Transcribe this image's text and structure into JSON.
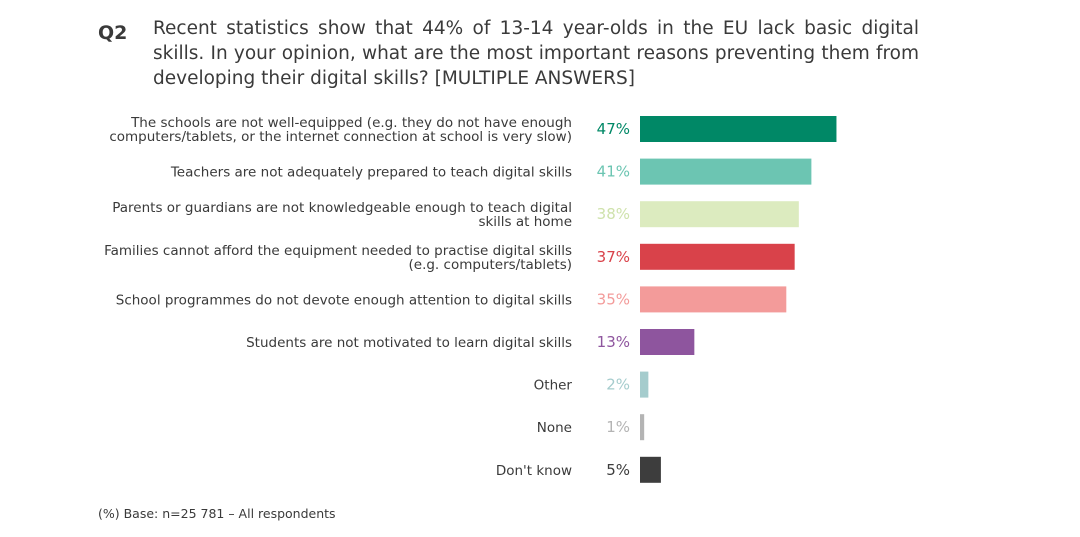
{
  "question": {
    "number": "Q2",
    "text": "Recent statistics show that 44% of 13-14 year-olds in the EU lack basic digital skills. In your opinion, what are the most important reasons preventing them from developing their digital skills? [MULTIPLE ANSWERS]"
  },
  "chart_data": {
    "type": "bar",
    "orientation": "horizontal",
    "categories": [
      [
        "The schools are not well-equipped (e.g. they do not have enough",
        "computers/tablets, or the internet connection at school is very slow)"
      ],
      [
        "Teachers are not adequately prepared to teach digital skills"
      ],
      [
        "Parents or guardians are not knowledgeable enough to teach digital",
        "skills at home"
      ],
      [
        "Families cannot afford the equipment needed to practise digital skills",
        "(e.g. computers/tablets)"
      ],
      [
        "School programmes do not devote enough attention to digital skills"
      ],
      [
        "Students are not motivated to learn digital skills"
      ],
      [
        "Other"
      ],
      [
        "None"
      ],
      [
        "Don't know"
      ]
    ],
    "values": [
      47,
      41,
      38,
      37,
      35,
      13,
      2,
      1,
      5
    ],
    "value_labels": [
      "47%",
      "41%",
      "38%",
      "37%",
      "35%",
      "13%",
      "2%",
      "1%",
      "5%"
    ],
    "colors": [
      "#008866",
      "#6cc5b2",
      "#dcebbf",
      "#d9424a",
      "#f39b9a",
      "#8e559e",
      "#a5cccd",
      "#b4b4b4",
      "#3d3d3d"
    ],
    "label_colors": [
      "#008866",
      "#6cc5b2",
      "#cfe2ac",
      "#d9424a",
      "#f39b9a",
      "#8e559e",
      "#a5cccd",
      "#b4b4b4",
      "#3d3d3d"
    ]
  },
  "footnote": "(%) Base: n=25 781 – All respondents"
}
